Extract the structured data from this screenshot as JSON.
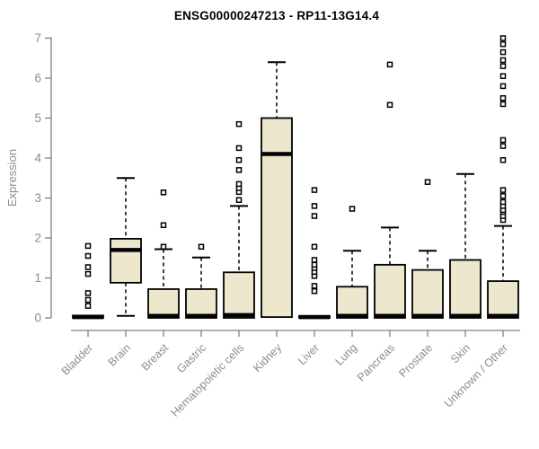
{
  "chart_data": {
    "type": "boxplot",
    "title": "ENSG00000247213 - RP11-13G14.4",
    "ylabel": "Expression",
    "xlabel": "",
    "ylim": [
      0,
      7
    ],
    "yticks": [
      0,
      1,
      2,
      3,
      4,
      5,
      6,
      7
    ],
    "grid": false,
    "legend": "none",
    "box_fill": "#ECE7CD",
    "box_stroke": "#000000",
    "axis_color": "#808080",
    "tick_text_color": "#8c8c8c",
    "title_color": "#000000",
    "categories": [
      "Bladder",
      "Brain",
      "Breast",
      "Gastric",
      "Hematopoietic cells",
      "Kidney",
      "Liver",
      "Lung",
      "Pancreas",
      "Prostate",
      "Skin",
      "Unknown / Other"
    ],
    "series": [
      {
        "name": "Bladder",
        "whisker_low": 0,
        "q1": 0,
        "median": 0.02,
        "q3": 0.06,
        "whisker_high": 0.06,
        "outliers": [
          0.3,
          0.45,
          0.62,
          1.1,
          1.27,
          1.55,
          1.8
        ]
      },
      {
        "name": "Brain",
        "whisker_low": 0.05,
        "q1": 0.88,
        "median": 1.7,
        "q3": 1.98,
        "whisker_high": 3.5,
        "outliers": []
      },
      {
        "name": "Breast",
        "whisker_low": 0,
        "q1": 0,
        "median": 0.05,
        "q3": 0.72,
        "whisker_high": 1.72,
        "outliers": [
          1.78,
          2.32,
          3.14
        ]
      },
      {
        "name": "Gastric",
        "whisker_low": 0,
        "q1": 0,
        "median": 0.05,
        "q3": 0.72,
        "whisker_high": 1.51,
        "outliers": [
          1.78
        ]
      },
      {
        "name": "Hematopoietic cells",
        "whisker_low": 0,
        "q1": 0,
        "median": 0.07,
        "q3": 1.14,
        "whisker_high": 2.8,
        "outliers": [
          2.95,
          3.15,
          3.25,
          3.35,
          3.7,
          3.95,
          4.25,
          4.85
        ]
      },
      {
        "name": "Kidney",
        "whisker_low": 0.02,
        "q1": 0.02,
        "median": 4.1,
        "q3": 5.0,
        "whisker_high": 6.4,
        "outliers": []
      },
      {
        "name": "Liver",
        "whisker_low": 0,
        "q1": 0,
        "median": 0.02,
        "q3": 0.05,
        "whisker_high": 0.05,
        "outliers": [
          0.67,
          0.8,
          1.05,
          1.15,
          1.25,
          1.33,
          1.45,
          1.78,
          2.55,
          2.8,
          3.2
        ]
      },
      {
        "name": "Lung",
        "whisker_low": 0,
        "q1": 0,
        "median": 0.05,
        "q3": 0.78,
        "whisker_high": 1.68,
        "outliers": [
          2.73
        ]
      },
      {
        "name": "Pancreas",
        "whisker_low": 0,
        "q1": 0,
        "median": 0.05,
        "q3": 1.33,
        "whisker_high": 2.26,
        "outliers": [
          5.33,
          6.34
        ]
      },
      {
        "name": "Prostate",
        "whisker_low": 0,
        "q1": 0,
        "median": 0.05,
        "q3": 1.2,
        "whisker_high": 1.68,
        "outliers": [
          3.4
        ]
      },
      {
        "name": "Skin",
        "whisker_low": 0,
        "q1": 0,
        "median": 0.05,
        "q3": 1.45,
        "whisker_high": 3.6,
        "outliers": []
      },
      {
        "name": "Unknown / Other",
        "whisker_low": 0,
        "q1": 0,
        "median": 0.05,
        "q3": 0.92,
        "whisker_high": 2.3,
        "outliers": [
          2.45,
          2.55,
          2.65,
          2.7,
          2.8,
          2.9,
          3.05,
          3.2,
          3.95,
          4.3,
          4.45,
          5.35,
          5.5,
          5.8,
          6.05,
          6.3,
          6.45,
          6.65,
          6.85,
          7.0
        ]
      }
    ]
  }
}
